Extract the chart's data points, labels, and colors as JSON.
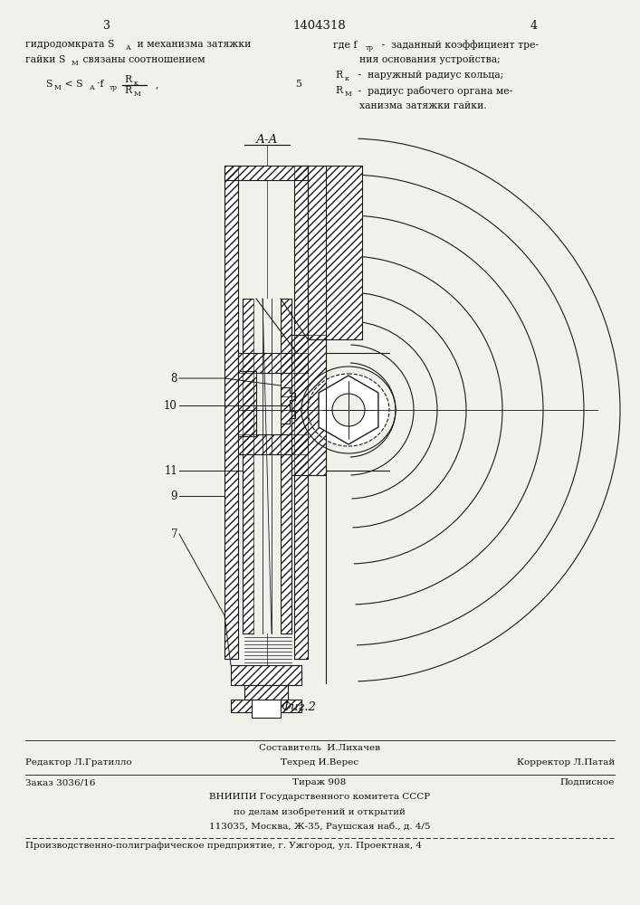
{
  "patent_number": "1404318",
  "page_left": "3",
  "page_right": "4",
  "bg_color": "#f2f0eb",
  "line_color": "#1a1a1a",
  "text_color": "#111111",
  "section_label": "А-А",
  "fig_label": "Фиг.2",
  "footer_composer": "Составитель  И.Лихачев",
  "footer_editor": "Редактор Л.Гратилло",
  "footer_techred": "Техред И.Верес",
  "footer_corrector": "Корректор Л.Патай",
  "footer_order": "Заказ 3036/16",
  "footer_copies": "Тираж 908",
  "footer_signed": "Подписное",
  "footer_org1": "ВНИИПИ Государственного комитета СССР",
  "footer_org2": "по делам изобретений и открытий",
  "footer_org3": "113035, Москва, Ж-35, Раушская наб., д. 4/5",
  "footer_org4": "Производственно-полиграфическое предприятие, г. Ужгород, ул. Проектная, 4"
}
